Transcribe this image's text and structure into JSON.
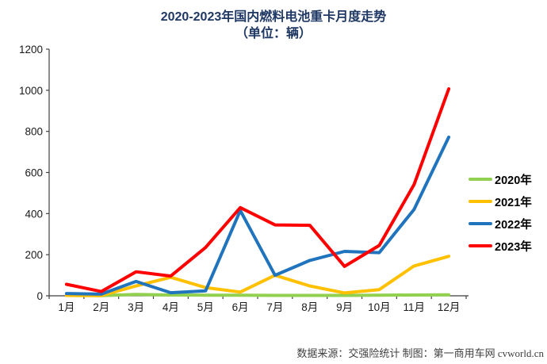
{
  "footer": {
    "text": "数据来源：交强险统计  制图：第一商用车网 cvworld.cn"
  },
  "colors": {
    "title": "#1F3864",
    "axis": "#3f3f3f",
    "tick_label": "#1a1a1a",
    "series_2020": "#92D050",
    "series_2021": "#FFC000",
    "series_2022": "#1F74BD",
    "series_2023": "#FF0000"
  },
  "chart_data": {
    "type": "line",
    "title": "2020-2023年国内燃料电池重卡月度走势",
    "subtitle": "（单位：辆）",
    "categories": [
      "1月",
      "2月",
      "3月",
      "4月",
      "5月",
      "6月",
      "7月",
      "8月",
      "9月",
      "10月",
      "11月",
      "12月"
    ],
    "series": [
      {
        "name": "2020年",
        "color": "#92D050",
        "values": [
          2,
          1,
          7,
          4,
          3,
          3,
          2,
          2,
          2,
          3,
          4,
          5
        ]
      },
      {
        "name": "2021年",
        "color": "#FFC000",
        "values": [
          2,
          1,
          48,
          90,
          40,
          18,
          100,
          48,
          14,
          30,
          145,
          192
        ]
      },
      {
        "name": "2022年",
        "color": "#1F74BD",
        "values": [
          11,
          8,
          70,
          15,
          24,
          415,
          100,
          172,
          216,
          210,
          420,
          772
        ]
      },
      {
        "name": "2023年",
        "color": "#FF0000",
        "values": [
          56,
          21,
          117,
          96,
          235,
          429,
          345,
          343,
          143,
          245,
          541,
          1007
        ]
      }
    ],
    "ylim": [
      0,
      1200
    ],
    "ytick_step": 200,
    "grid": false,
    "legend_position": "right",
    "x_axis_note": "category labels centered between boundary tick marks"
  }
}
